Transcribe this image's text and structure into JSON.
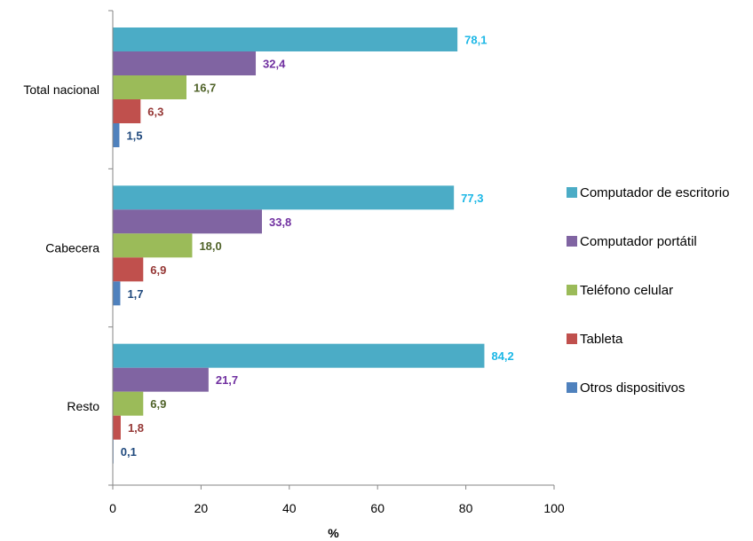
{
  "chart_data": {
    "type": "bar",
    "orientation": "horizontal",
    "categories": [
      "Total nacional",
      "Cabecera",
      "Resto"
    ],
    "series": [
      {
        "name": "Computador de escritorio",
        "values": [
          78.1,
          77.3,
          84.2
        ],
        "labels": [
          "78,1",
          "77,3",
          "84,2"
        ],
        "color": "#4bacc6",
        "label_color": "#1cb7e6"
      },
      {
        "name": "Computador portátil",
        "values": [
          32.4,
          33.8,
          21.7
        ],
        "labels": [
          "32,4",
          "33,8",
          "21,7"
        ],
        "color": "#8064a2",
        "label_color": "#7030a0"
      },
      {
        "name": "Teléfono celular",
        "values": [
          16.7,
          18.0,
          6.9
        ],
        "labels": [
          "16,7",
          "18,0",
          "6,9"
        ],
        "color": "#9bbb59",
        "label_color": "#4f6228"
      },
      {
        "name": "Tableta",
        "values": [
          6.3,
          6.9,
          1.8
        ],
        "labels": [
          "6,3",
          "6,9",
          "1,8"
        ],
        "color": "#c0504d",
        "label_color": "#953735"
      },
      {
        "name": "Otros dispositivos",
        "values": [
          1.5,
          1.7,
          0.1
        ],
        "labels": [
          "1,5",
          "1,7",
          "0,1"
        ],
        "color": "#4f81bd",
        "label_color": "#1f497d"
      }
    ],
    "xlabel": "%",
    "ylabel": "",
    "xlim": [
      0,
      100
    ],
    "xticks": [
      0,
      20,
      40,
      60,
      80,
      100
    ],
    "grid": false,
    "legend_position": "right"
  }
}
